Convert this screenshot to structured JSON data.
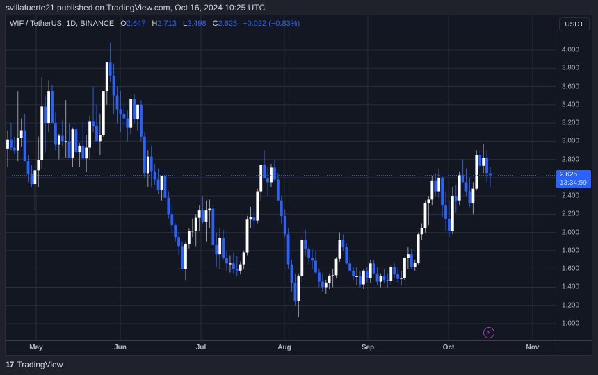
{
  "header": {
    "published": "svillafuerte21 published on TradingView.com, Oct 16, 2024 10:25 UTC"
  },
  "legend": {
    "symbol": "WIF / TetherUS, 1D, BINANCE",
    "o_label": "O",
    "o": "2.647",
    "h_label": "H",
    "h": "2.713",
    "l_label": "L",
    "l": "2.498",
    "c_label": "C",
    "c": "2.625",
    "change": "−0.022 (−0.83%)"
  },
  "price_scale": {
    "currency": "USDT",
    "ticks": [
      "4.000",
      "3.800",
      "3.600",
      "3.400",
      "3.200",
      "3.000",
      "2.800",
      "2.400",
      "2.200",
      "2.000",
      "1.800",
      "1.600",
      "1.400",
      "1.200",
      "1.000"
    ],
    "last_price": "2.625",
    "countdown": "13:34:59"
  },
  "time_axis": {
    "months": [
      "May",
      "Jun",
      "Jul",
      "Aug",
      "Sep",
      "Oct",
      "Nov"
    ]
  },
  "footer": {
    "brand": "TradingView",
    "logo_mark": "17"
  },
  "colors": {
    "up": "#ffffff",
    "down": "#2962ff",
    "background": "#131722",
    "grid": "#2a2e39",
    "accent": "#2962ff"
  },
  "chart_data": {
    "type": "candlestick",
    "title": "WIF / TetherUS, 1D, BINANCE",
    "ylabel": "USDT",
    "ylim": [
      0.9,
      4.1
    ],
    "x_ticks": [
      "May",
      "Jun",
      "Jul",
      "Aug",
      "Sep",
      "Oct",
      "Nov"
    ],
    "y_ticks": [
      1.0,
      1.2,
      1.4,
      1.6,
      1.8,
      2.0,
      2.2,
      2.4,
      2.6,
      2.8,
      3.0,
      3.2,
      3.4,
      3.6,
      3.8,
      4.0
    ],
    "last": {
      "open": 2.647,
      "high": 2.713,
      "low": 2.498,
      "close": 2.625,
      "change": -0.022,
      "change_pct": -0.83
    },
    "candles": [
      [
        2.92,
        3.12,
        2.72,
        3.02
      ],
      [
        3.02,
        3.2,
        2.9,
        2.93
      ],
      [
        2.93,
        3.05,
        2.86,
        2.9
      ],
      [
        2.9,
        3.55,
        2.78,
        3.04
      ],
      [
        3.04,
        3.25,
        2.94,
        3.12
      ],
      [
        3.12,
        3.3,
        2.86,
        2.78
      ],
      [
        2.78,
        2.85,
        2.55,
        2.64
      ],
      [
        2.64,
        2.74,
        2.5,
        2.53
      ],
      [
        2.53,
        2.7,
        2.25,
        2.68
      ],
      [
        2.68,
        3.05,
        2.5,
        2.79
      ],
      [
        2.79,
        3.7,
        2.69,
        3.38
      ],
      [
        3.38,
        3.5,
        2.88,
        3.2
      ],
      [
        3.2,
        3.67,
        3.1,
        3.55
      ],
      [
        3.55,
        3.62,
        3.35,
        3.2
      ],
      [
        3.2,
        3.32,
        2.9,
        2.96
      ],
      [
        2.96,
        3.08,
        2.8,
        3.06
      ],
      [
        3.06,
        3.23,
        2.95,
        3.0
      ],
      [
        3.0,
        3.45,
        2.82,
        3.0
      ],
      [
        3.0,
        3.2,
        2.85,
        2.82
      ],
      [
        2.82,
        3.15,
        2.72,
        3.13
      ],
      [
        3.13,
        3.18,
        2.88,
        2.88
      ],
      [
        2.88,
        2.98,
        2.72,
        2.95
      ],
      [
        2.95,
        3.2,
        2.88,
        2.81
      ],
      [
        2.81,
        3.07,
        2.66,
        2.93
      ],
      [
        2.93,
        3.28,
        2.8,
        3.22
      ],
      [
        3.22,
        3.6,
        3.1,
        3.17
      ],
      [
        3.17,
        3.4,
        3.05,
        3.0
      ],
      [
        3.0,
        3.3,
        2.85,
        3.07
      ],
      [
        3.07,
        3.55,
        3.05,
        3.55
      ],
      [
        3.55,
        3.8,
        3.4,
        3.87
      ],
      [
        3.87,
        4.08,
        3.65,
        3.72
      ],
      [
        3.72,
        3.85,
        3.3,
        3.5
      ],
      [
        3.5,
        3.6,
        3.2,
        3.35
      ],
      [
        3.35,
        3.55,
        3.1,
        3.3
      ],
      [
        3.3,
        3.4,
        3.15,
        3.25
      ],
      [
        3.25,
        3.34,
        3.0,
        3.15
      ],
      [
        3.15,
        3.47,
        3.08,
        3.46
      ],
      [
        3.46,
        3.52,
        3.2,
        3.24
      ],
      [
        3.24,
        3.4,
        3.12,
        3.4
      ],
      [
        3.4,
        3.45,
        3.0,
        3.05
      ],
      [
        3.05,
        3.1,
        2.6,
        2.65
      ],
      [
        2.65,
        2.9,
        2.5,
        2.83
      ],
      [
        2.83,
        2.95,
        2.5,
        2.67
      ],
      [
        2.67,
        2.75,
        2.52,
        2.58
      ],
      [
        2.58,
        2.7,
        2.42,
        2.47
      ],
      [
        2.47,
        2.55,
        2.35,
        2.62
      ],
      [
        2.62,
        2.7,
        2.4,
        2.38
      ],
      [
        2.38,
        2.45,
        2.15,
        2.2
      ],
      [
        2.2,
        2.3,
        2.0,
        2.08
      ],
      [
        2.08,
        2.1,
        1.9,
        1.95
      ],
      [
        1.95,
        2.0,
        1.75,
        1.85
      ],
      [
        1.85,
        1.9,
        1.6,
        1.6
      ],
      [
        1.6,
        1.9,
        1.48,
        1.87
      ],
      [
        1.87,
        2.05,
        1.82,
        2.02
      ],
      [
        2.02,
        2.15,
        1.95,
        2.02
      ],
      [
        2.02,
        2.2,
        1.85,
        2.16
      ],
      [
        2.16,
        2.3,
        2.02,
        2.24
      ],
      [
        2.24,
        2.4,
        2.1,
        2.12
      ],
      [
        2.12,
        2.35,
        1.9,
        2.24
      ],
      [
        2.24,
        2.36,
        2.05,
        2.26
      ],
      [
        2.26,
        2.3,
        1.95,
        1.86
      ],
      [
        1.86,
        2.0,
        1.62,
        1.76
      ],
      [
        1.76,
        2.04,
        1.6,
        1.94
      ],
      [
        1.94,
        2.03,
        1.7,
        1.72
      ],
      [
        1.72,
        1.8,
        1.58,
        1.66
      ],
      [
        1.66,
        1.75,
        1.56,
        1.66
      ],
      [
        1.66,
        1.78,
        1.55,
        1.6
      ],
      [
        1.6,
        1.74,
        1.52,
        1.58
      ],
      [
        1.58,
        1.68,
        1.54,
        1.65
      ],
      [
        1.65,
        1.8,
        1.6,
        1.78
      ],
      [
        1.78,
        2.18,
        1.75,
        2.14
      ],
      [
        2.14,
        2.28,
        2.05,
        2.17
      ],
      [
        2.17,
        2.29,
        2.05,
        2.13
      ],
      [
        2.13,
        2.48,
        2.1,
        2.45
      ],
      [
        2.45,
        2.68,
        2.35,
        2.74
      ],
      [
        2.74,
        2.9,
        2.68,
        2.59
      ],
      [
        2.59,
        2.72,
        2.4,
        2.55
      ],
      [
        2.55,
        2.75,
        2.5,
        2.71
      ],
      [
        2.71,
        2.8,
        2.56,
        2.58
      ],
      [
        2.58,
        2.65,
        2.35,
        2.35
      ],
      [
        2.35,
        2.4,
        2.1,
        2.18
      ],
      [
        2.18,
        2.25,
        1.95,
        1.98
      ],
      [
        1.98,
        2.05,
        1.6,
        1.65
      ],
      [
        1.65,
        1.7,
        1.35,
        1.45
      ],
      [
        1.45,
        1.55,
        1.2,
        1.25
      ],
      [
        1.25,
        1.55,
        1.07,
        1.52
      ],
      [
        1.52,
        1.95,
        1.46,
        1.92
      ],
      [
        1.92,
        2.03,
        1.75,
        1.82
      ],
      [
        1.82,
        1.85,
        1.65,
        1.72
      ],
      [
        1.72,
        1.82,
        1.6,
        1.69
      ],
      [
        1.69,
        1.8,
        1.55,
        1.56
      ],
      [
        1.56,
        1.6,
        1.4,
        1.46
      ],
      [
        1.46,
        1.55,
        1.35,
        1.4
      ],
      [
        1.4,
        1.48,
        1.32,
        1.45
      ],
      [
        1.45,
        1.55,
        1.38,
        1.52
      ],
      [
        1.52,
        1.6,
        1.4,
        1.53
      ],
      [
        1.53,
        1.73,
        1.5,
        1.71
      ],
      [
        1.71,
        2.0,
        1.68,
        1.92
      ],
      [
        1.92,
        1.98,
        1.8,
        1.84
      ],
      [
        1.84,
        1.88,
        1.65,
        1.66
      ],
      [
        1.66,
        1.73,
        1.58,
        1.58
      ],
      [
        1.58,
        1.62,
        1.48,
        1.52
      ],
      [
        1.52,
        1.62,
        1.42,
        1.52
      ],
      [
        1.52,
        1.58,
        1.4,
        1.43
      ],
      [
        1.43,
        1.6,
        1.38,
        1.58
      ],
      [
        1.58,
        1.62,
        1.45,
        1.5
      ],
      [
        1.5,
        1.7,
        1.45,
        1.66
      ],
      [
        1.66,
        1.7,
        1.55,
        1.55
      ],
      [
        1.55,
        1.62,
        1.42,
        1.46
      ],
      [
        1.46,
        1.55,
        1.4,
        1.52
      ],
      [
        1.52,
        1.6,
        1.45,
        1.48
      ],
      [
        1.48,
        1.55,
        1.4,
        1.47
      ],
      [
        1.47,
        1.64,
        1.42,
        1.62
      ],
      [
        1.62,
        1.66,
        1.5,
        1.54
      ],
      [
        1.54,
        1.6,
        1.45,
        1.49
      ],
      [
        1.49,
        1.58,
        1.42,
        1.5
      ],
      [
        1.5,
        1.73,
        1.48,
        1.72
      ],
      [
        1.72,
        1.84,
        1.6,
        1.76
      ],
      [
        1.76,
        1.82,
        1.6,
        1.62
      ],
      [
        1.62,
        1.7,
        1.58,
        1.67
      ],
      [
        1.67,
        2.0,
        1.65,
        1.98
      ],
      [
        1.98,
        2.1,
        1.92,
        2.05
      ],
      [
        2.05,
        2.35,
        2.0,
        2.32
      ],
      [
        2.32,
        2.4,
        2.08,
        2.36
      ],
      [
        2.36,
        2.62,
        2.3,
        2.57
      ],
      [
        2.57,
        2.65,
        2.4,
        2.45
      ],
      [
        2.45,
        2.7,
        2.38,
        2.6
      ],
      [
        2.6,
        2.62,
        2.17,
        2.3
      ],
      [
        2.3,
        2.45,
        2.02,
        2.15
      ],
      [
        2.15,
        2.34,
        1.95,
        2.02
      ],
      [
        2.02,
        2.5,
        1.98,
        2.4
      ],
      [
        2.4,
        2.52,
        2.22,
        2.35
      ],
      [
        2.35,
        2.67,
        2.3,
        2.63
      ],
      [
        2.63,
        2.8,
        2.6,
        2.55
      ],
      [
        2.55,
        2.7,
        2.4,
        2.45
      ],
      [
        2.45,
        2.6,
        2.28,
        2.32
      ],
      [
        2.32,
        2.55,
        2.2,
        2.48
      ],
      [
        2.48,
        2.9,
        2.46,
        2.85
      ],
      [
        2.85,
        2.9,
        2.7,
        2.73
      ],
      [
        2.73,
        2.97,
        2.65,
        2.82
      ],
      [
        2.82,
        2.9,
        2.55,
        2.65
      ],
      [
        2.647,
        2.713,
        2.498,
        2.625
      ]
    ]
  }
}
